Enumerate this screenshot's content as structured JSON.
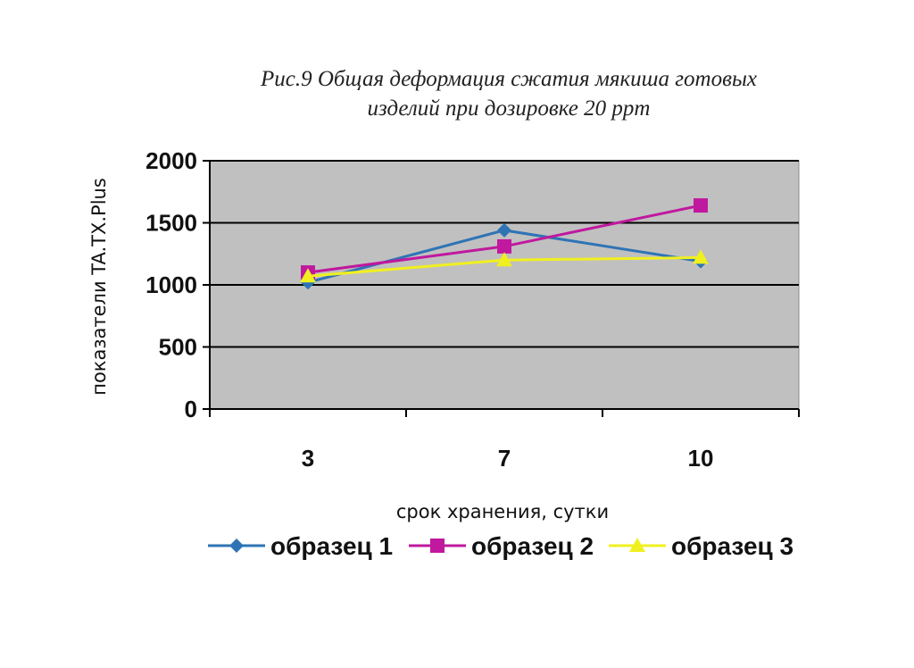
{
  "caption": {
    "line1": "Рис.9 Общая деформация сжатия мякиша готовых",
    "line2": "изделий при дозировке 20 ppm"
  },
  "chart_data": {
    "type": "line",
    "title": "Рис.9 Общая деформация сжатия мякиша готовых изделий при дозировке 20 ppm",
    "xlabel": "срок хранения, сутки",
    "ylabel": "показатели TA.TX.Plus",
    "categories": [
      "3",
      "7",
      "10"
    ],
    "ylim": [
      0,
      2000
    ],
    "yticks": [
      0,
      500,
      1000,
      1500,
      2000
    ],
    "grid": true,
    "legend_position": "bottom",
    "plot_background": "#c0c0c0",
    "series": [
      {
        "name": "образец 1",
        "values": [
          1020,
          1440,
          1190
        ],
        "color": "#2e74b5",
        "marker": "diamond"
      },
      {
        "name": "образец 2",
        "values": [
          1100,
          1310,
          1640
        ],
        "color": "#c0189e",
        "marker": "square"
      },
      {
        "name": "образец 3",
        "values": [
          1070,
          1200,
          1220
        ],
        "color": "#f0f020",
        "marker": "triangle"
      }
    ]
  }
}
